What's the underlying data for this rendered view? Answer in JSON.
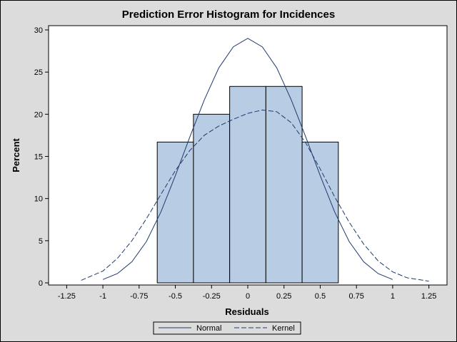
{
  "chart_data": {
    "type": "bar",
    "title": "Prediction Error Histogram for Incidences",
    "xlabel": "Residuals",
    "ylabel": "Percent",
    "xlim": [
      -1.375,
      1.375
    ],
    "ylim": [
      0,
      30
    ],
    "xticks": [
      -1.25,
      -1,
      -0.75,
      -0.5,
      -0.25,
      0,
      0.25,
      0.5,
      0.75,
      1,
      1.25
    ],
    "xtick_labels": [
      "-1.25",
      "-1",
      "-0.75",
      "-0.5",
      "-0.25",
      "0",
      "0.25",
      "0.5",
      "0.75",
      "1",
      "1.25"
    ],
    "yticks": [
      0,
      5,
      10,
      15,
      20,
      25,
      30
    ],
    "ytick_labels": [
      "0",
      "5",
      "10",
      "15",
      "20",
      "25",
      "30"
    ],
    "bin_width": 0.25,
    "bin_midpoints": [
      -0.5,
      -0.25,
      0,
      0.25,
      0.5
    ],
    "values": [
      16.7,
      20.0,
      23.3,
      23.3,
      16.7
    ],
    "bar_color": "#b8cce4",
    "curve_color": "#1f3a6e",
    "grid": false,
    "legend": {
      "placement": "bottom-center",
      "entries": [
        "Normal",
        "Kernel"
      ]
    },
    "curves": [
      {
        "name": "Normal",
        "style": "solid",
        "x": [
          -1.0,
          -0.9,
          -0.8,
          -0.7,
          -0.6,
          -0.5,
          -0.4,
          -0.3,
          -0.2,
          -0.1,
          0.0,
          0.1,
          0.2,
          0.3,
          0.4,
          0.5,
          0.6,
          0.7,
          0.8,
          0.9,
          1.0
        ],
        "y": [
          0.4,
          1.1,
          2.5,
          4.9,
          8.4,
          12.7,
          17.3,
          21.7,
          25.5,
          28.0,
          29.0,
          28.0,
          25.5,
          21.7,
          17.3,
          12.7,
          8.4,
          4.9,
          2.5,
          1.1,
          0.4
        ]
      },
      {
        "name": "Kernel",
        "style": "dashed",
        "x": [
          -1.15,
          -1.0,
          -0.9,
          -0.8,
          -0.7,
          -0.6,
          -0.5,
          -0.4,
          -0.3,
          -0.2,
          -0.1,
          0.0,
          0.1,
          0.2,
          0.3,
          0.4,
          0.5,
          0.6,
          0.7,
          0.8,
          0.9,
          1.0,
          1.1,
          1.25
        ],
        "y": [
          0.3,
          1.4,
          2.9,
          5.0,
          7.6,
          10.5,
          13.3,
          15.7,
          17.5,
          18.6,
          19.4,
          20.1,
          20.5,
          20.3,
          19.0,
          16.6,
          13.5,
          10.2,
          7.2,
          4.6,
          2.6,
          1.3,
          0.6,
          0.2
        ]
      }
    ]
  }
}
